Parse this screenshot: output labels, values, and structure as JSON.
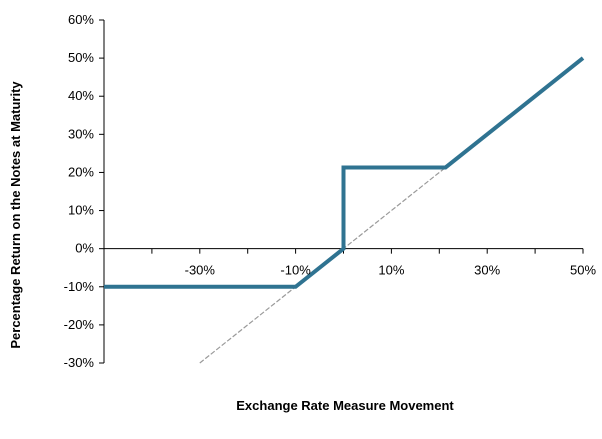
{
  "chart_data": {
    "type": "line",
    "title": "",
    "xlabel": "Exchange Rate Measure Movement",
    "ylabel": "Percentage Return on the Notes at Maturity",
    "xlim": [
      -50,
      50
    ],
    "ylim": [
      -30,
      60
    ],
    "x_ticks": [
      "-30%",
      "-10%",
      "10%",
      "30%",
      "50%"
    ],
    "x_tick_values": [
      -30,
      -10,
      10,
      30,
      50
    ],
    "y_ticks": [
      "60%",
      "50%",
      "40%",
      "30%",
      "20%",
      "10%",
      "0%",
      "-10%",
      "-20%",
      "-30%"
    ],
    "y_tick_values": [
      60,
      50,
      40,
      30,
      20,
      10,
      0,
      -10,
      -20,
      -30
    ],
    "grid": false,
    "legend": "none",
    "series": [
      {
        "style": "thick-solid",
        "color": "#2f7391",
        "x": [
          -50,
          -10,
          0,
          0,
          21.3,
          50
        ],
        "y": [
          -10,
          -10,
          0,
          21.3,
          21.3,
          50
        ]
      },
      {
        "style": "thin-dashed",
        "color": "#9a9a9a",
        "x": [
          -30,
          50
        ],
        "y": [
          -30,
          50
        ]
      }
    ]
  }
}
